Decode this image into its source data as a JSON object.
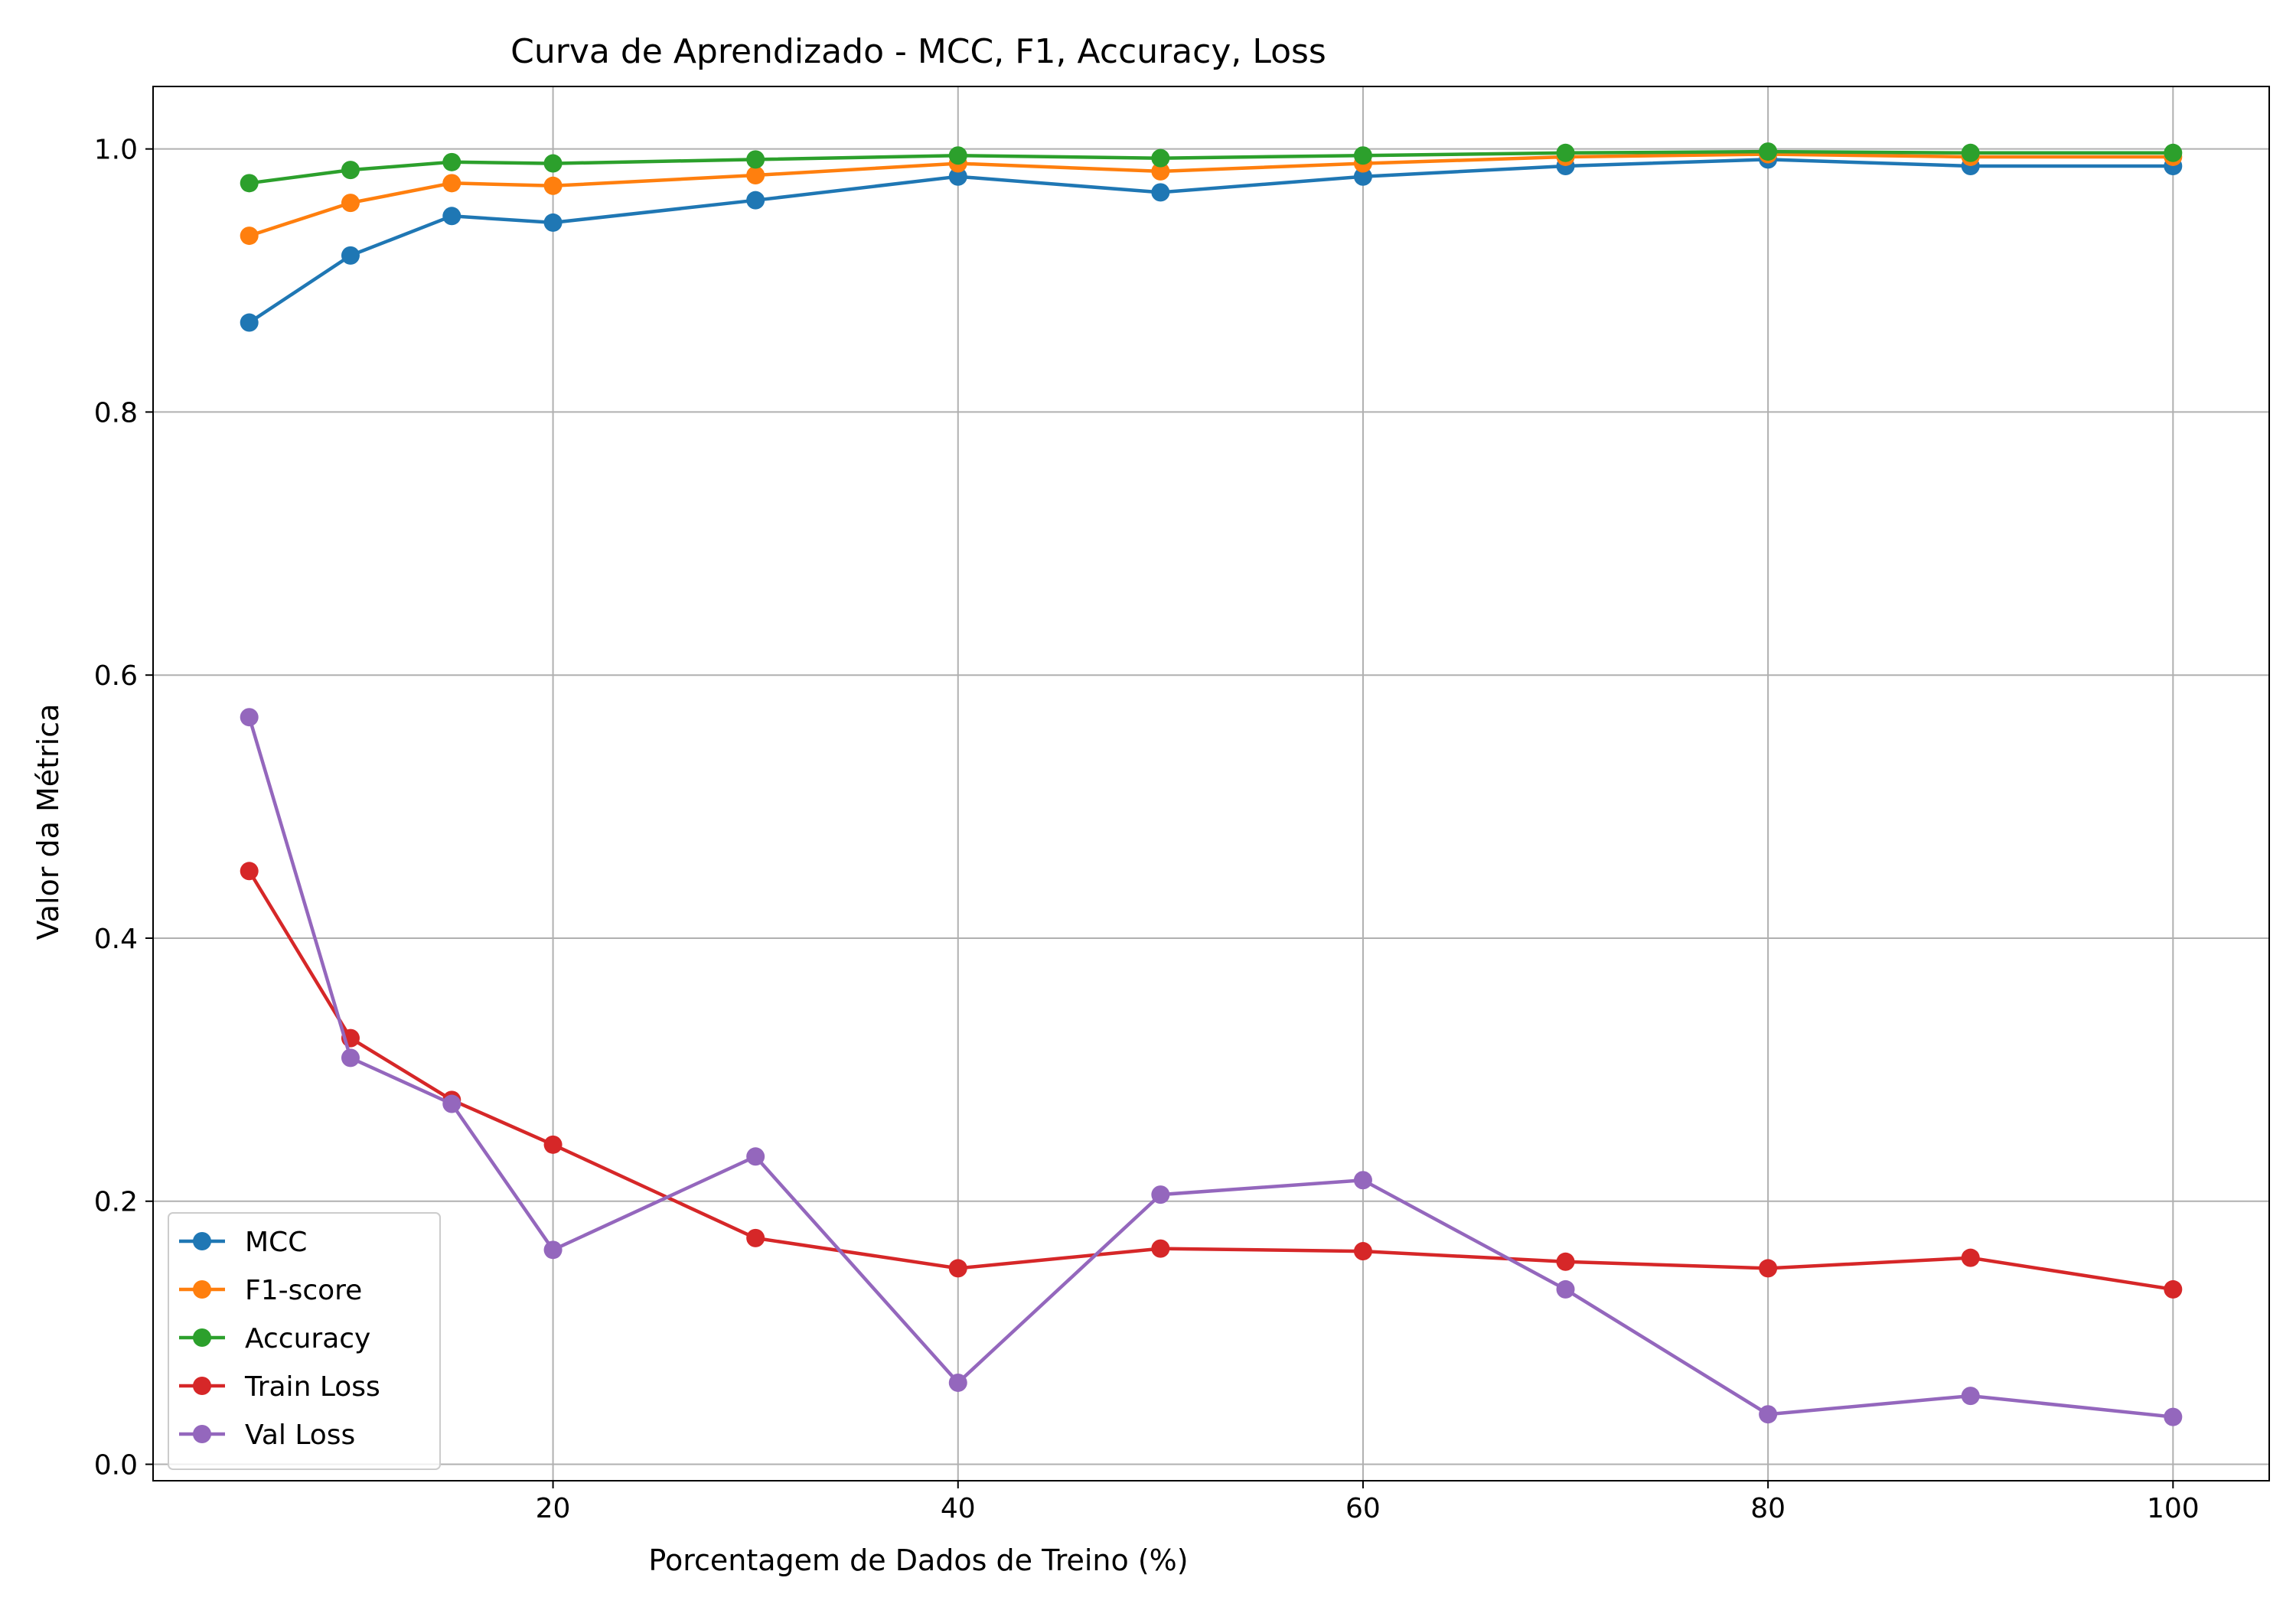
{
  "chart_data": {
    "type": "line",
    "title": "Curva de Aprendizado - MCC, F1, Accuracy, Loss",
    "xlabel": "Porcentagem de Dados de Treino (%)",
    "ylabel": "Valor da Métrica",
    "xlim": [
      0.25,
      104.75
    ],
    "ylim": [
      -0.0125,
      1.0475
    ],
    "xticks": [
      20,
      40,
      60,
      80,
      100
    ],
    "yticks": [
      0.0,
      0.2,
      0.4,
      0.6,
      0.8,
      1.0
    ],
    "xtick_labels": [
      "20",
      "40",
      "60",
      "80",
      "100"
    ],
    "ytick_labels": [
      "0.0",
      "0.2",
      "0.4",
      "0.6",
      "0.8",
      "1.0"
    ],
    "grid": true,
    "legend_position": "lower-left",
    "x": [
      5,
      10,
      15,
      20,
      30,
      40,
      50,
      60,
      70,
      80,
      90,
      100
    ],
    "series": [
      {
        "name": "MCC",
        "color": "#1f77b4",
        "values": [
          0.868,
          0.919,
          0.949,
          0.944,
          0.961,
          0.979,
          0.967,
          0.979,
          0.987,
          0.992,
          0.987,
          0.987
        ]
      },
      {
        "name": "F1-score",
        "color": "#ff7f0e",
        "values": [
          0.934,
          0.959,
          0.974,
          0.972,
          0.98,
          0.989,
          0.983,
          0.989,
          0.994,
          0.996,
          0.994,
          0.994
        ]
      },
      {
        "name": "Accuracy",
        "color": "#2ca02c",
        "values": [
          0.974,
          0.984,
          0.99,
          0.989,
          0.992,
          0.995,
          0.993,
          0.995,
          0.997,
          0.998,
          0.997,
          0.997
        ]
      },
      {
        "name": "Train Loss",
        "color": "#d62728",
        "values": [
          0.451,
          0.324,
          0.277,
          0.243,
          0.172,
          0.149,
          0.164,
          0.162,
          0.154,
          0.149,
          0.157,
          0.133
        ]
      },
      {
        "name": "Val Loss",
        "color": "#9467bd",
        "values": [
          0.568,
          0.309,
          0.274,
          0.163,
          0.234,
          0.062,
          0.205,
          0.216,
          0.133,
          0.038,
          0.052,
          0.036
        ]
      }
    ]
  }
}
